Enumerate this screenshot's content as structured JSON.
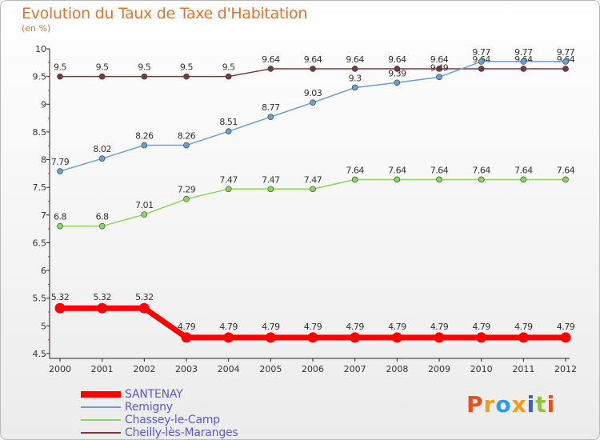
{
  "title": "Evolution du Taux de Taxe d'Habitation",
  "subtitle": "(en %)",
  "logo_text": "Proxiti",
  "logo_colors": [
    "#e8501e",
    "#f39c1e",
    "#2aa0d8",
    "#f39c1e",
    "#3a63c9",
    "#8cc63f",
    "#e8501e"
  ],
  "chart_data": {
    "type": "line",
    "x": [
      "2000",
      "2001",
      "2002",
      "2003",
      "2004",
      "2005",
      "2006",
      "2007",
      "2008",
      "2009",
      "2010",
      "2011",
      "2012"
    ],
    "ylim": [
      4.5,
      10
    ],
    "yticks": [
      "4.5",
      "5",
      "5.5",
      "6",
      "6.5",
      "7",
      "7.5",
      "8",
      "8.5",
      "9",
      "9.5",
      "10"
    ],
    "grid": false,
    "legend_position": "bottom-left",
    "series": [
      {
        "name": "SANTENAY",
        "color": "#ff0000",
        "values": [
          5.32,
          5.32,
          5.32,
          4.79,
          4.79,
          4.79,
          4.79,
          4.79,
          4.79,
          4.79,
          4.79,
          4.79,
          4.79
        ],
        "labels": [
          "5.32",
          "5.32",
          "5.32",
          "4.79",
          "4.79",
          "4.79",
          "4.79",
          "4.79",
          "4.79",
          "4.79",
          "4.79",
          "4.79",
          "4.79"
        ]
      },
      {
        "name": "Remigny",
        "color": "#6a9fd4",
        "values": [
          7.79,
          8.02,
          8.26,
          8.26,
          8.51,
          8.77,
          9.03,
          9.3,
          9.39,
          9.49,
          9.77,
          9.77,
          9.77
        ],
        "labels": [
          "7.79",
          "8.02",
          "8.26",
          "8.26",
          "8.51",
          "8.77",
          "9.03",
          "9.3",
          "9.39",
          "9.49",
          "9.77",
          "9.77",
          "9.77"
        ]
      },
      {
        "name": "Chassey-le-Camp",
        "color": "#8cd660",
        "values": [
          6.8,
          6.8,
          7.01,
          7.29,
          7.47,
          7.47,
          7.47,
          7.64,
          7.64,
          7.64,
          7.64,
          7.64,
          7.64
        ],
        "labels": [
          "6.8",
          "6.8",
          "7.01",
          "7.29",
          "7.47",
          "7.47",
          "7.47",
          "7.64",
          "7.64",
          "7.64",
          "7.64",
          "7.64",
          "7.64"
        ]
      },
      {
        "name": "Cheilly-lès-Maranges",
        "color": "#7a3b3b",
        "values": [
          9.5,
          9.5,
          9.5,
          9.5,
          9.5,
          9.64,
          9.64,
          9.64,
          9.64,
          9.64,
          9.64,
          9.64,
          9.64
        ],
        "labels": [
          "9.5",
          "9.5",
          "9.5",
          "9.5",
          "9.5",
          "9.64",
          "9.64",
          "9.64",
          "9.64",
          "9.64",
          "9.64",
          "9.64",
          "9.64"
        ]
      }
    ]
  }
}
